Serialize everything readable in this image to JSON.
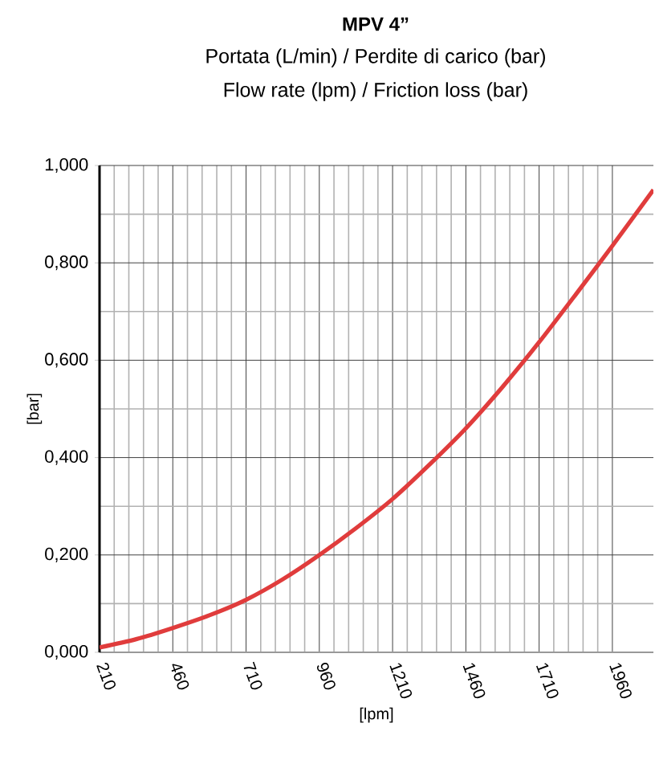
{
  "chart_data": {
    "type": "line",
    "title": "MPV 4”",
    "subtitle": "Portata (L/min) / Perdite di carico (bar)",
    "annotations": [
      "Flow rate (lpm) / Friction loss (bar)"
    ],
    "xlabel": "[lpm]",
    "ylabel": "[bar]",
    "x": [
      210,
      335,
      460,
      585,
      710,
      835,
      960,
      1085,
      1210,
      1335,
      1460,
      1585,
      1710,
      1835,
      1960,
      2100
    ],
    "series": [
      {
        "color": "#e03c3c",
        "values": [
          0.01,
          0.027,
          0.05,
          0.076,
          0.108,
          0.15,
          0.2,
          0.255,
          0.315,
          0.385,
          0.46,
          0.545,
          0.637,
          0.735,
          0.835,
          0.95
        ]
      }
    ],
    "xlim": [
      210,
      2100
    ],
    "ylim": [
      0,
      1
    ],
    "xticks": [
      210,
      460,
      710,
      960,
      1210,
      1460,
      1710,
      1960
    ],
    "yticks": [
      {
        "value": 0,
        "label": "0,000"
      },
      {
        "value": 0.2,
        "label": "0,200"
      },
      {
        "value": 0.4,
        "label": "0,400"
      },
      {
        "value": 0.6,
        "label": "0,600"
      },
      {
        "value": 0.8,
        "label": "0,800"
      },
      {
        "value": 1,
        "label": "1,000"
      }
    ],
    "grid": true,
    "marker": "none",
    "line_style": "solid"
  }
}
